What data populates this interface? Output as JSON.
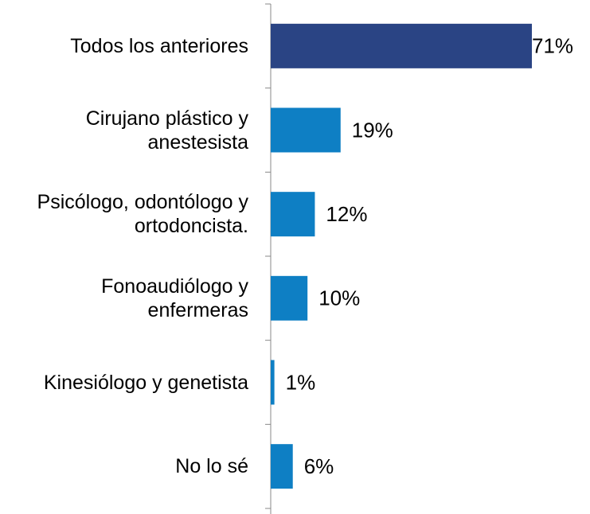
{
  "chart_data": {
    "type": "bar",
    "orientation": "horizontal",
    "categories": [
      "Todos los anteriores",
      "Cirujano plástico y anestesista",
      "Psicólogo, odontólogo y ortodoncista.",
      "Fonoaudiólogo y enfermeras",
      "Kinesiólogo y genetista",
      "No lo sé"
    ],
    "values": [
      71,
      19,
      12,
      10,
      1,
      6
    ],
    "value_labels": [
      "71%",
      "19%",
      "12%",
      "10%",
      "1%",
      "6%"
    ],
    "colors": [
      "#2a4484",
      "#0e7fc4",
      "#0e7fc4",
      "#0e7fc4",
      "#0e7fc4",
      "#0e7fc4"
    ]
  }
}
